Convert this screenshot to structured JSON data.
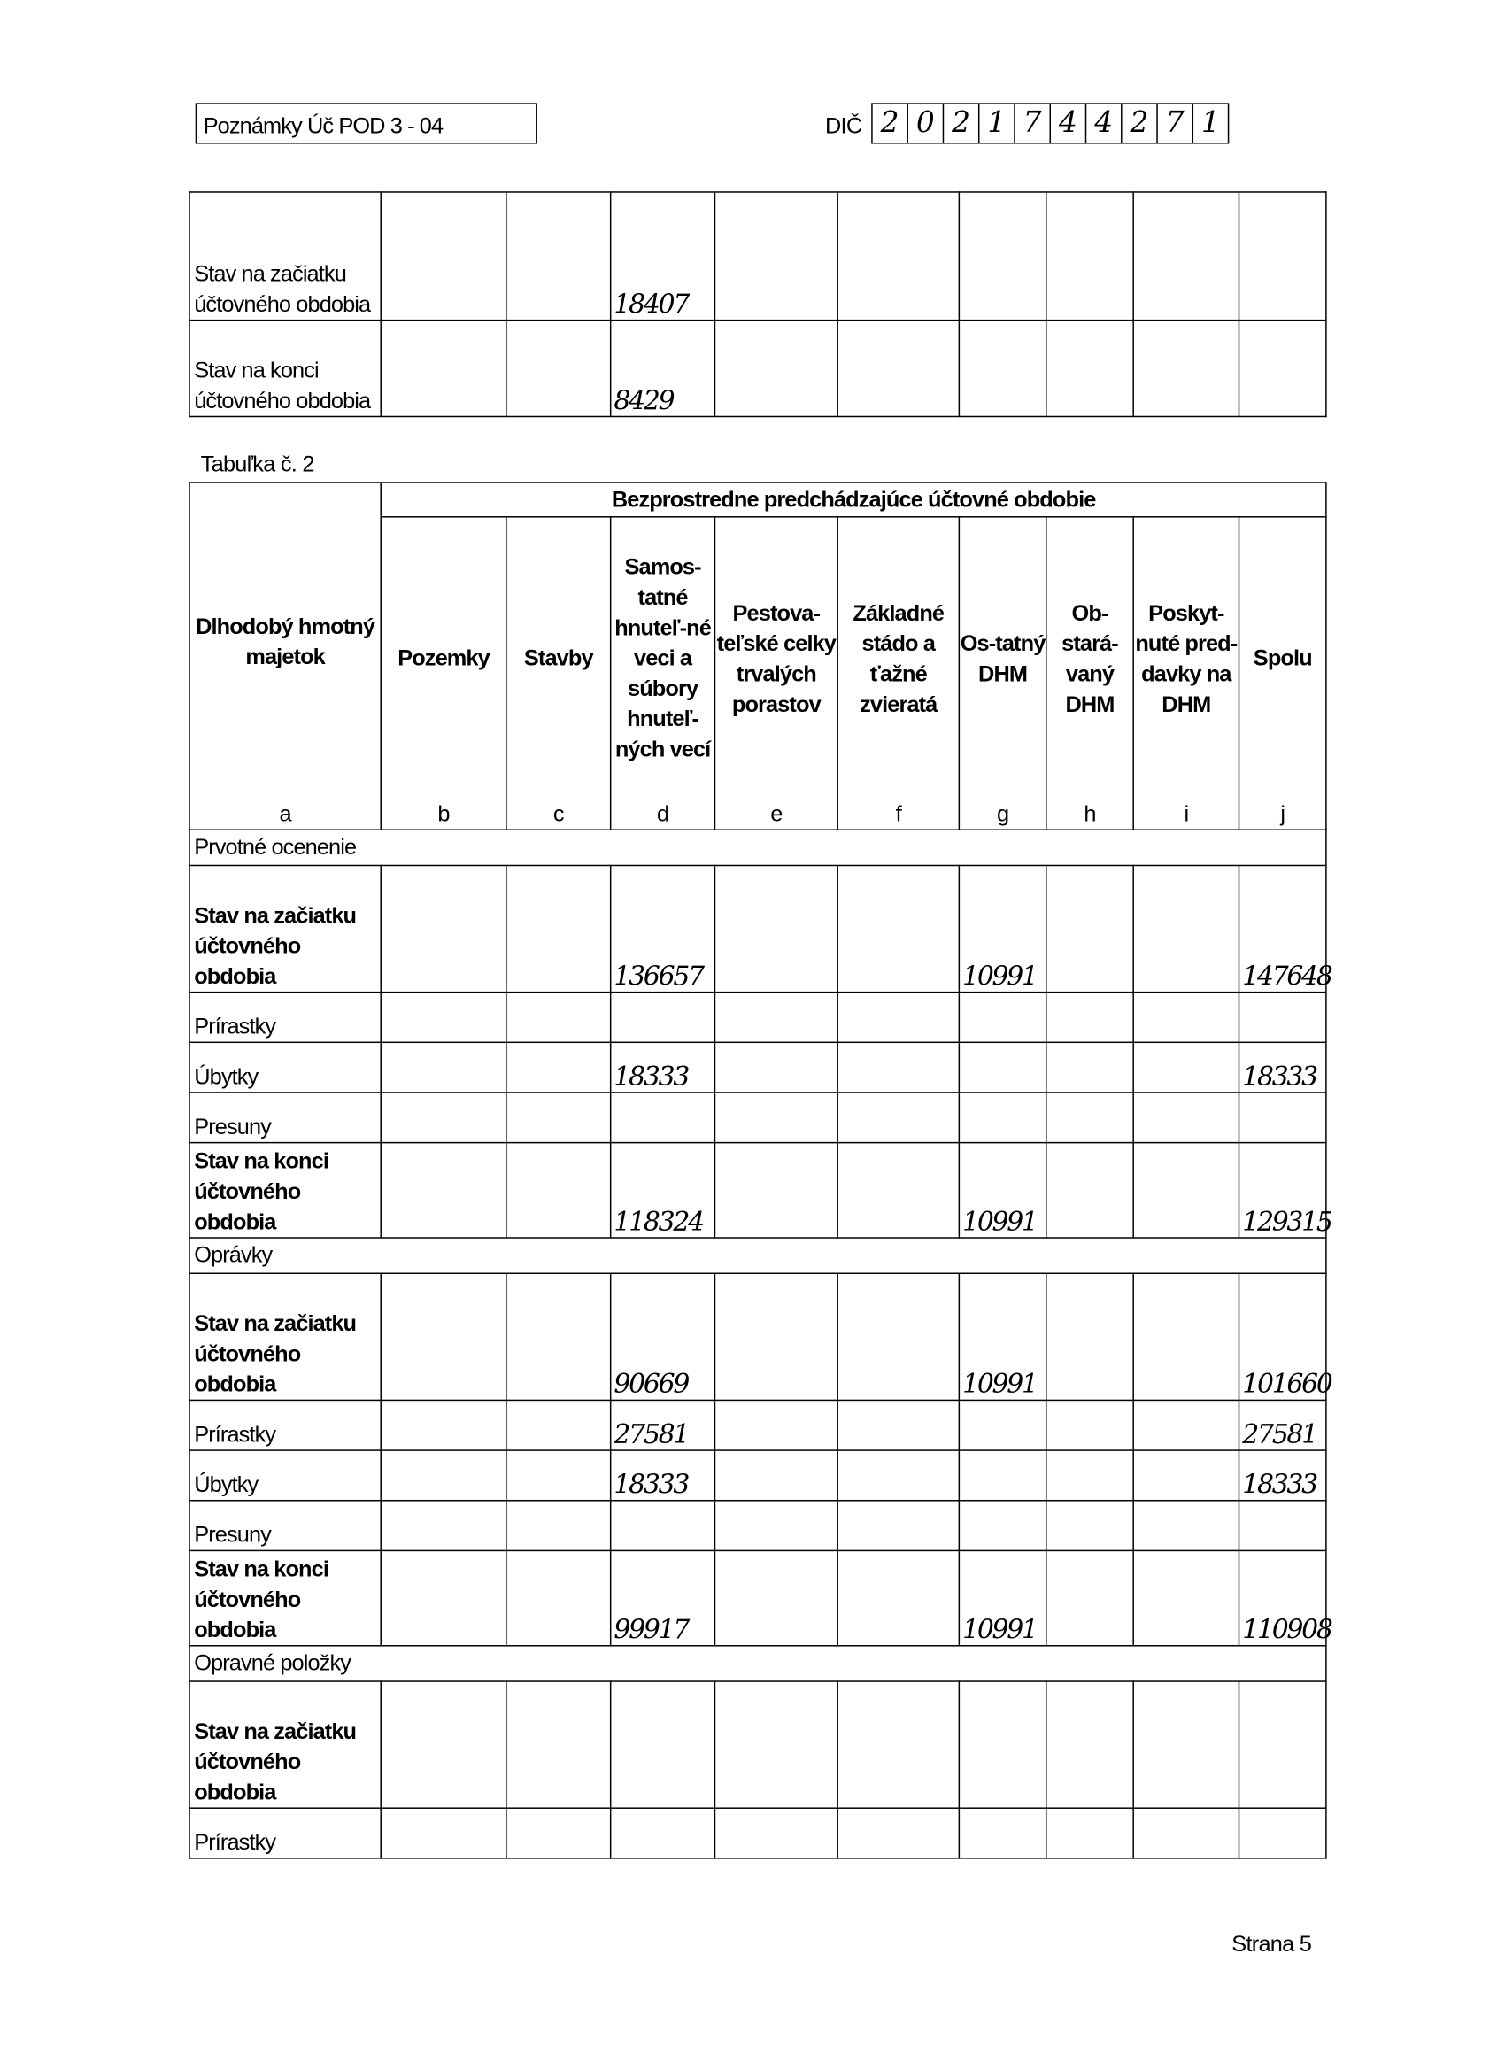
{
  "header": {
    "doc_title": "Poznámky Úč POD 3 - 04",
    "dic_label": "DIČ",
    "dic_digits": [
      "2",
      "0",
      "2",
      "1",
      "7",
      "4",
      "4",
      "2",
      "7",
      "1"
    ]
  },
  "top_table": {
    "rows": [
      {
        "label": "Stav na začiatku účtovného obdobia",
        "values": [
          "",
          "",
          "18407",
          "",
          "",
          "",
          "",
          "",
          ""
        ]
      },
      {
        "label": "Stav na konci účtovného obdobia",
        "values": [
          "",
          "",
          "8429",
          "",
          "",
          "",
          "",
          "",
          ""
        ]
      }
    ]
  },
  "table2": {
    "caption": "Tabuľka č. 2",
    "group_header": "Bezprostredne predchádzajúce účtovné obdobie",
    "columns": [
      {
        "label": "Dlhodobý hmotný majetok",
        "letter": "a"
      },
      {
        "label": "Pozemky",
        "letter": "b"
      },
      {
        "label": "Stavby",
        "letter": "c"
      },
      {
        "label": "Samos-tatné hnuteľ-né veci a súbory hnuteľ-ných vecí",
        "letter": "d"
      },
      {
        "label": "Pestova-teľské celky trvalých porastov",
        "letter": "e"
      },
      {
        "label": "Základné stádo a ťažné zvieratá",
        "letter": "f"
      },
      {
        "label": "Os-tatný DHM",
        "letter": "g"
      },
      {
        "label": "Ob-stará-vaný DHM",
        "letter": "h"
      },
      {
        "label": "Poskyt-nuté pred-davky na DHM",
        "letter": "i"
      },
      {
        "label": "Spolu",
        "letter": "j"
      }
    ],
    "sections": [
      {
        "title": "Prvotné ocenenie",
        "rows": [
          {
            "label": "Stav na začiatku účtovného obdobia",
            "bold": true,
            "values": [
              "",
              "",
              "136657",
              "",
              "",
              "10991",
              "",
              "",
              "147648"
            ]
          },
          {
            "label": "Prírastky",
            "bold": false,
            "values": [
              "",
              "",
              "",
              "",
              "",
              "",
              "",
              "",
              ""
            ]
          },
          {
            "label": "Úbytky",
            "bold": false,
            "values": [
              "",
              "",
              "18333",
              "",
              "",
              "",
              "",
              "",
              "18333"
            ]
          },
          {
            "label": "Presuny",
            "bold": false,
            "values": [
              "",
              "",
              "",
              "",
              "",
              "",
              "",
              "",
              ""
            ]
          },
          {
            "label": "Stav na konci účtovného obdobia",
            "bold": true,
            "values": [
              "",
              "",
              "118324",
              "",
              "",
              "10991",
              "",
              "",
              "129315"
            ]
          }
        ]
      },
      {
        "title": "Oprávky",
        "rows": [
          {
            "label": "Stav na začiatku účtovného obdobia",
            "bold": true,
            "values": [
              "",
              "",
              "90669",
              "",
              "",
              "10991",
              "",
              "",
              "101660"
            ]
          },
          {
            "label": "Prírastky",
            "bold": false,
            "values": [
              "",
              "",
              "27581",
              "",
              "",
              "",
              "",
              "",
              "27581"
            ]
          },
          {
            "label": "Úbytky",
            "bold": false,
            "values": [
              "",
              "",
              "18333",
              "",
              "",
              "",
              "",
              "",
              "18333"
            ]
          },
          {
            "label": "Presuny",
            "bold": false,
            "values": [
              "",
              "",
              "",
              "",
              "",
              "",
              "",
              "",
              ""
            ]
          },
          {
            "label": "Stav na konci účtovného obdobia",
            "bold": true,
            "values": [
              "",
              "",
              "99917",
              "",
              "",
              "10991",
              "",
              "",
              "110908"
            ]
          }
        ]
      },
      {
        "title": "Opravné položky",
        "rows": [
          {
            "label": "Stav na začiatku účtovného obdobia",
            "bold": true,
            "values": [
              "",
              "",
              "",
              "",
              "",
              "",
              "",
              "",
              ""
            ]
          },
          {
            "label": "Prírastky",
            "bold": false,
            "values": [
              "",
              "",
              "",
              "",
              "",
              "",
              "",
              "",
              ""
            ]
          }
        ]
      }
    ]
  },
  "footer": {
    "page": "Strana 5"
  }
}
